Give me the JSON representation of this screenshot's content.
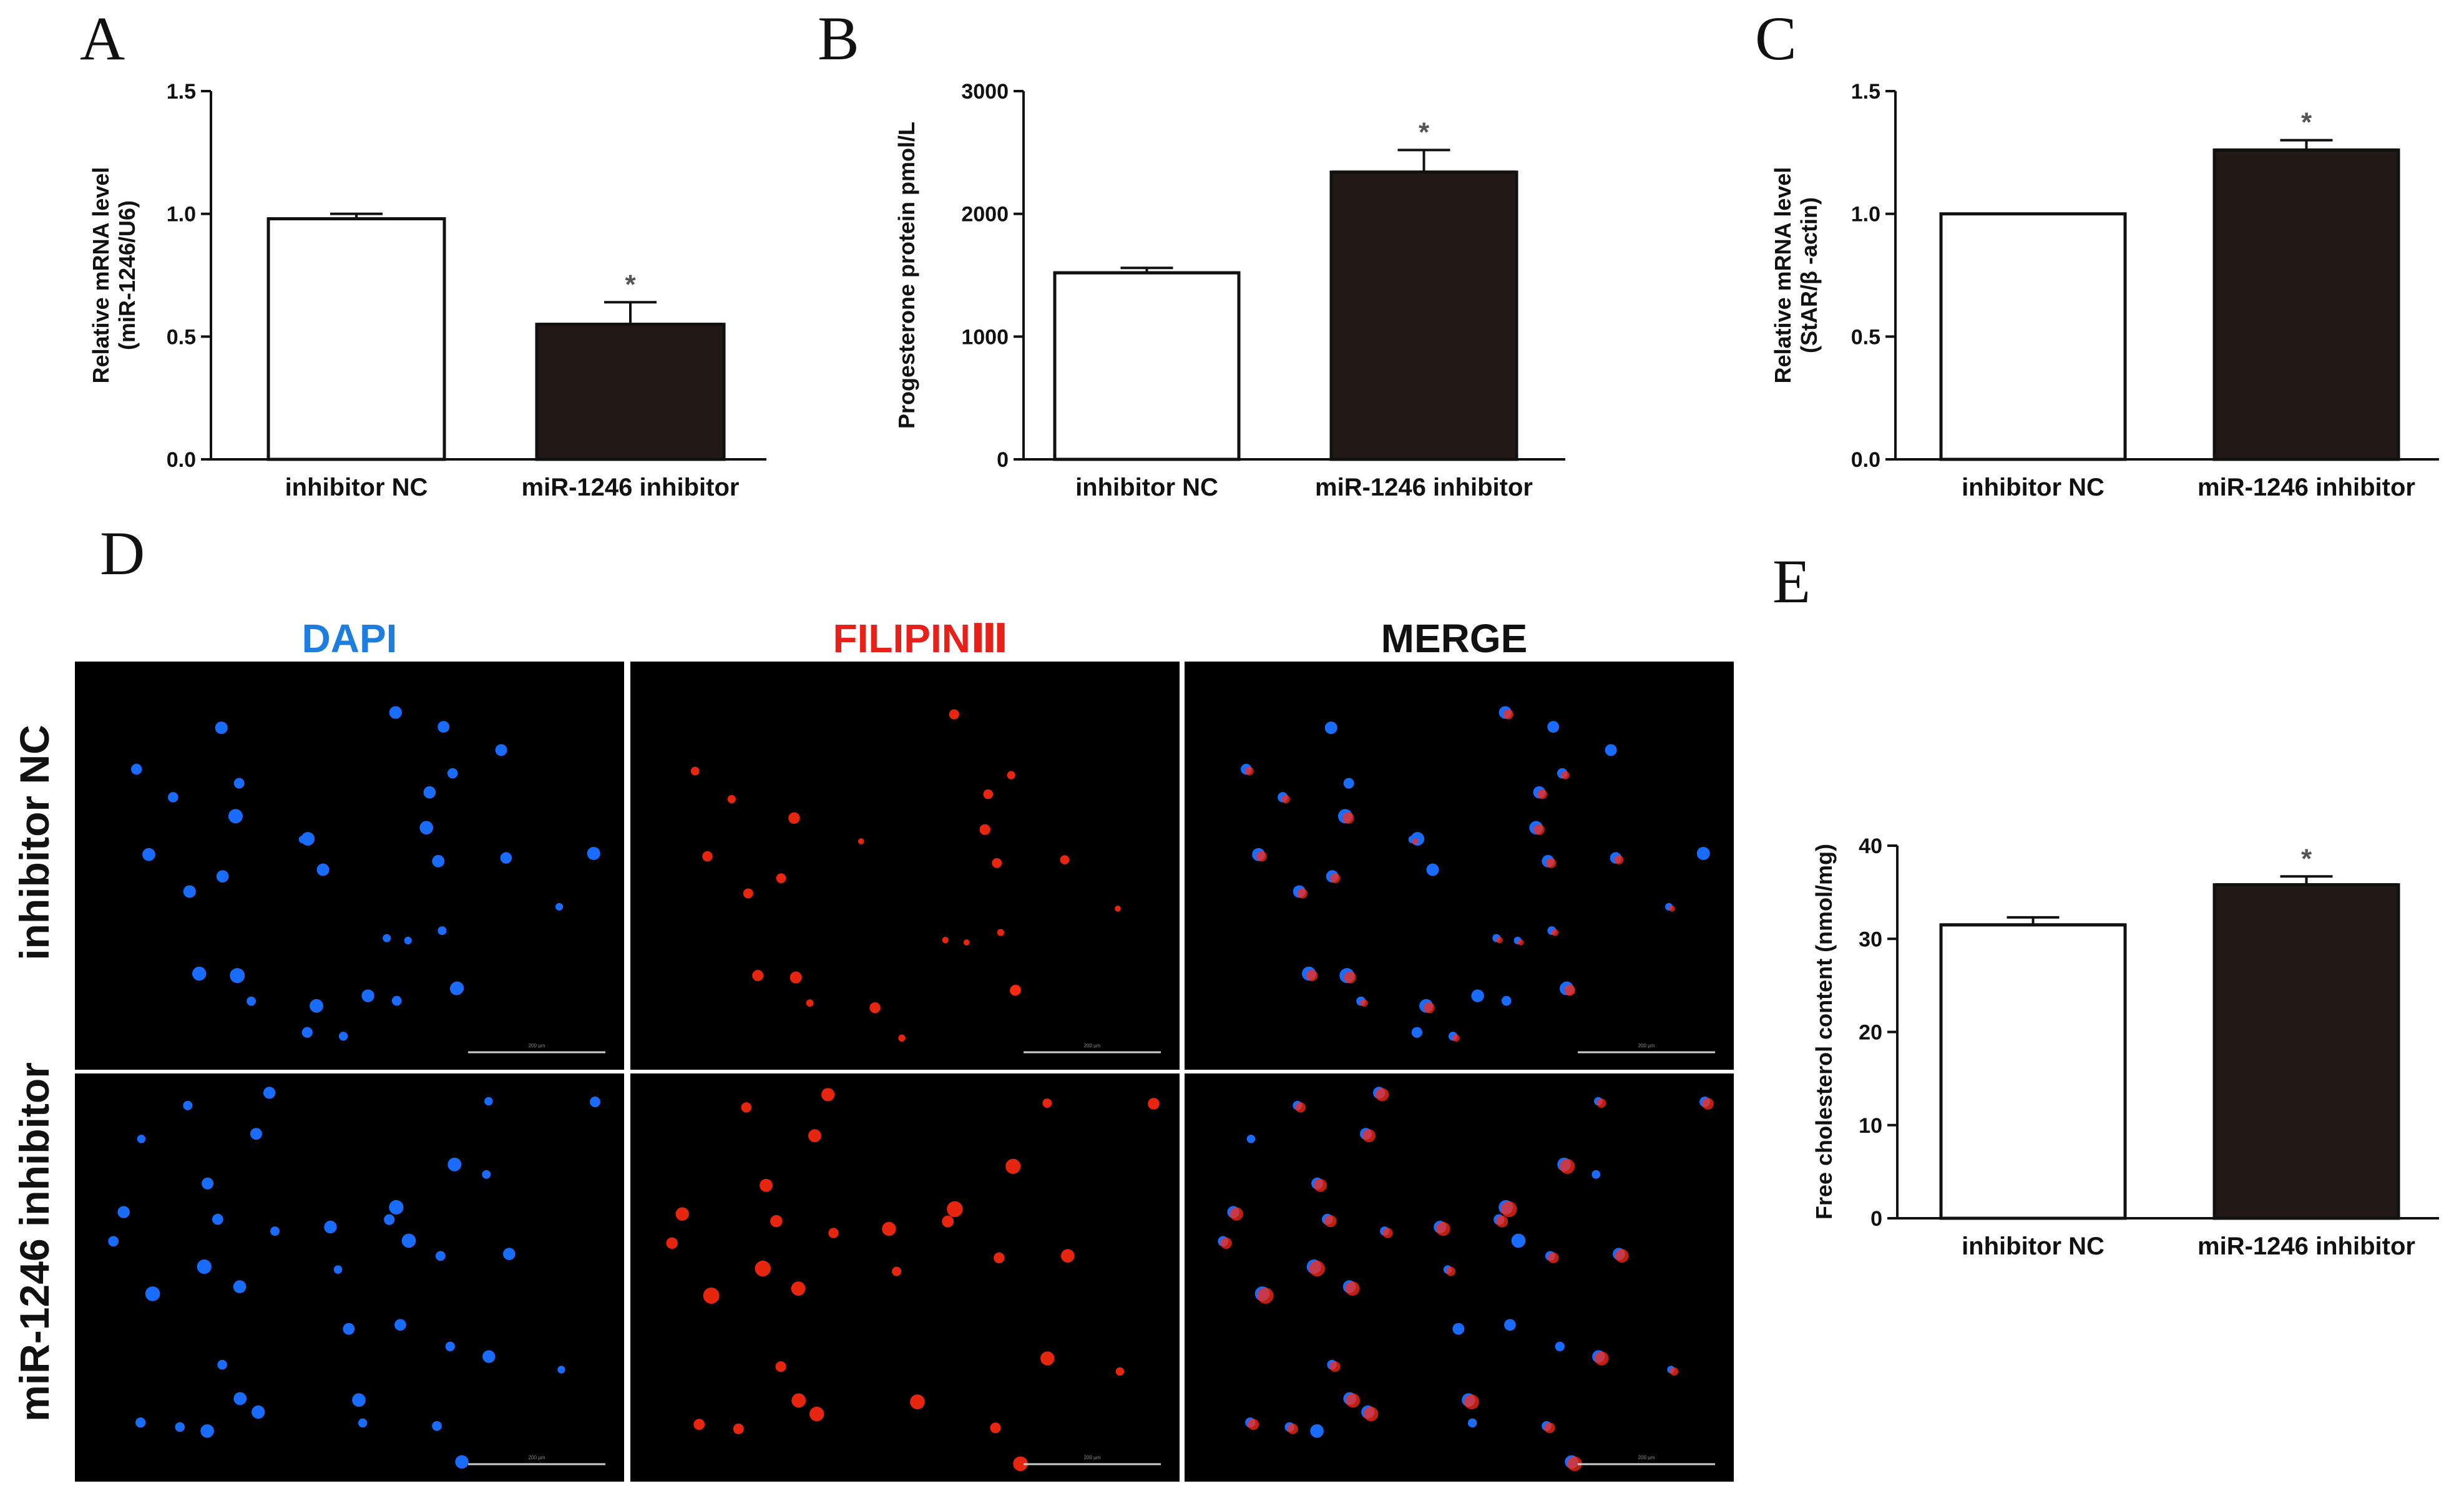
{
  "chart_data": [
    {
      "panel": "A",
      "type": "bar",
      "categories": [
        "inhibitor NC",
        "miR-1246 inhibitor"
      ],
      "values": [
        0.98,
        0.55
      ],
      "errors": [
        0.02,
        0.09
      ],
      "significance": [
        "",
        "*"
      ],
      "ylabel_lines": [
        "Relative mRNA level",
        "(miR-1246/U6)"
      ],
      "ylim": [
        0,
        1.5
      ],
      "yticks": [
        0,
        0.5,
        1.0,
        1.5
      ],
      "ytick_labels": [
        "0.0",
        "0.5",
        "1.0",
        "1.5"
      ],
      "bar_fills": [
        "#ffffff",
        "#231a18"
      ]
    },
    {
      "panel": "B",
      "type": "bar",
      "categories": [
        "inhibitor NC",
        "miR-1246 inhibitor"
      ],
      "values": [
        1520,
        2340
      ],
      "errors": [
        40,
        180
      ],
      "significance": [
        "",
        "*"
      ],
      "ylabel_lines": [
        "Progesterone protein pmol/L"
      ],
      "ylim": [
        0,
        3000
      ],
      "yticks": [
        0,
        1000,
        2000,
        3000
      ],
      "ytick_labels": [
        "0",
        "1000",
        "2000",
        "3000"
      ],
      "bar_fills": [
        "#ffffff",
        "#231a18"
      ]
    },
    {
      "panel": "C",
      "type": "bar",
      "categories": [
        "inhibitor NC",
        "miR-1246 inhibitor"
      ],
      "values": [
        1.0,
        1.26
      ],
      "errors": [
        0.0,
        0.04
      ],
      "significance": [
        "",
        "*"
      ],
      "ylabel_lines": [
        "Relative mRNA level",
        "(StAR/β -actin)"
      ],
      "ylim": [
        0,
        1.5
      ],
      "yticks": [
        0,
        0.5,
        1.0,
        1.5
      ],
      "ytick_labels": [
        "0.0",
        "0.5",
        "1.0",
        "1.5"
      ],
      "bar_fills": [
        "#ffffff",
        "#231a18"
      ]
    },
    {
      "panel": "E",
      "type": "bar",
      "categories": [
        "inhibitor NC",
        "miR-1246 inhibitor"
      ],
      "values": [
        31.5,
        35.8
      ],
      "errors": [
        0.8,
        0.9
      ],
      "significance": [
        "",
        "*"
      ],
      "ylabel_lines": [
        "Free cholesterol content (nmol/mg)"
      ],
      "ylim": [
        0,
        40
      ],
      "yticks": [
        0,
        10,
        20,
        30,
        40
      ],
      "ytick_labels": [
        "0",
        "10",
        "20",
        "30",
        "40"
      ],
      "bar_fills": [
        "#ffffff",
        "#231a18"
      ]
    }
  ],
  "panel_letters": {
    "A": "A",
    "B": "B",
    "C": "C",
    "D": "D",
    "E": "E"
  },
  "microscopy": {
    "column_titles": [
      "DAPI",
      "FILIPINⅢ",
      "MERGE"
    ],
    "column_colors": [
      "#1e7ee0",
      "#e8201a",
      "#111111"
    ],
    "row_titles": [
      "inhibitor NC",
      "miR-1246 inhibitor"
    ],
    "scale_bar_text": "200 μm"
  }
}
